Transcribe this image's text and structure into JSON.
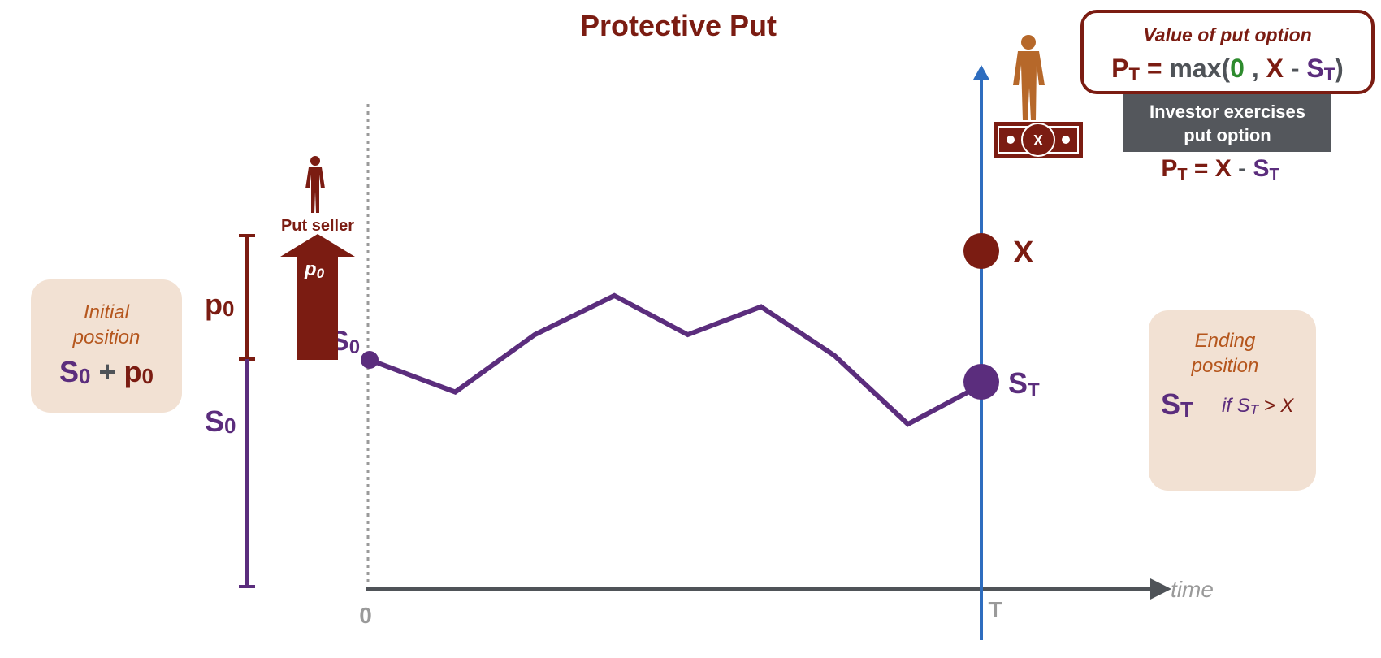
{
  "title": "Protective Put",
  "colors": {
    "brown": "#7B1C12",
    "purple": "#5B2D7D",
    "blue": "#2E6DBF",
    "axis": "#4F5358",
    "gray": "#9A9A9A",
    "green": "#2E8B2E",
    "orange": "#B5561D",
    "panel": "#F2E1D3",
    "dark_box": "#54575C",
    "figure_orange": "#B6682A"
  },
  "value_box": {
    "heading": "Value of put option",
    "P": "P",
    "T_sub": "T",
    "eq": " = ",
    "max_open": "max(",
    "zero": "0",
    "comma": " , ",
    "X": "X",
    "minus": " - ",
    "S": "S",
    "close": ")"
  },
  "exercise_box": {
    "line1": "Investor exercises",
    "line2": "put option"
  },
  "payoff": {
    "P": "P",
    "T_sub": "T",
    "eq": " = ",
    "X": "X",
    "minus": " - ",
    "S": "S"
  },
  "bill_label": "X",
  "put_seller": {
    "label": "Put seller",
    "arrow_p": "p",
    "arrow_sub": "0"
  },
  "left_bracket": {
    "p_label": "p",
    "p_sub": "0",
    "s_label": "S",
    "s_sub": "0"
  },
  "initial_panel": {
    "line1": "Initial",
    "line2": "position",
    "S": "S",
    "S_sub": "0",
    "plus": " + ",
    "p": "p",
    "p_sub": "0"
  },
  "ending_panel": {
    "line1": "Ending",
    "line2": "position",
    "S": "S",
    "S_sub": "T",
    "cond_if": "if S",
    "cond_sub": "T",
    "cond_rest": " > X"
  },
  "start_label": {
    "S": "S",
    "sub": "0"
  },
  "x_marker": "X",
  "st_marker": {
    "S": "S",
    "sub": "T"
  },
  "axis": {
    "label": "time",
    "zero": "0",
    "T": "T"
  },
  "price_path": [
    [
      0.0,
      0.0
    ],
    [
      0.14,
      -0.23
    ],
    [
      0.27,
      0.18
    ],
    [
      0.4,
      0.46
    ],
    [
      0.52,
      0.18
    ],
    [
      0.64,
      0.38
    ],
    [
      0.76,
      0.03
    ],
    [
      0.88,
      -0.46
    ],
    [
      1.0,
      -0.18
    ]
  ],
  "strike_level": 0.68
}
